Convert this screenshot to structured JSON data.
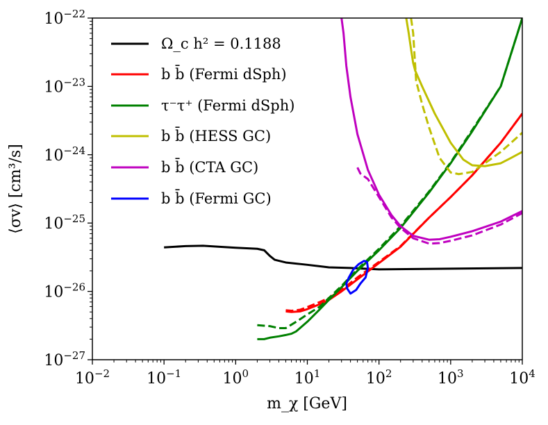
{
  "chart_data": {
    "type": "line",
    "xscale": "log",
    "yscale": "log",
    "xlim": [
      0.01,
      10000
    ],
    "ylim": [
      1e-27,
      1e-22
    ],
    "xlabel": "m_χ [GeV]",
    "ylabel": "⟨σv⟩ [cm³/s]",
    "xtick_labels": [
      {
        "base": "10",
        "exp": "−2",
        "value": 0.01
      },
      {
        "base": "10",
        "exp": "−1",
        "value": 0.1
      },
      {
        "base": "10",
        "exp": "0",
        "value": 1
      },
      {
        "base": "10",
        "exp": "1",
        "value": 10
      },
      {
        "base": "10",
        "exp": "2",
        "value": 100
      },
      {
        "base": "10",
        "exp": "3",
        "value": 1000
      },
      {
        "base": "10",
        "exp": "4",
        "value": 10000
      }
    ],
    "ytick_labels": [
      {
        "base": "10",
        "exp": "−27",
        "value": 1e-27
      },
      {
        "base": "10",
        "exp": "−26",
        "value": 1e-26
      },
      {
        "base": "10",
        "exp": "−25",
        "value": 1e-25
      },
      {
        "base": "10",
        "exp": "−24",
        "value": 1e-24
      },
      {
        "base": "10",
        "exp": "−23",
        "value": 1e-23
      },
      {
        "base": "10",
        "exp": "−22",
        "value": 1e-22
      }
    ],
    "legend_position": "top-left",
    "legend": [
      {
        "label": "Ω_c h² = 0.1188",
        "color": "#000000"
      },
      {
        "label": "b b̄ (Fermi dSph)",
        "color": "#ff0000"
      },
      {
        "label": "τ⁻τ⁺ (Fermi dSph)",
        "color": "#008000"
      },
      {
        "label": "b b̄ (HESS GC)",
        "color": "#bfbf00"
      },
      {
        "label": "b b̄ (CTA GC)",
        "color": "#bf00bf"
      },
      {
        "label": "b b̄ (Fermi GC)",
        "color": "#0000ff"
      }
    ],
    "series": [
      {
        "name": "Ω_c h² = 0.1188",
        "color": "#000000",
        "dash": false,
        "x": [
          0.1,
          0.2,
          0.35,
          0.6,
          1.0,
          2.0,
          2.5,
          3.0,
          3.5,
          5,
          10,
          20,
          40,
          100,
          1000,
          10000
        ],
        "y": [
          4.4e-26,
          4.6e-26,
          4.65e-26,
          4.5e-26,
          4.35e-26,
          4.2e-26,
          4e-26,
          3.3e-26,
          2.9e-26,
          2.65e-26,
          2.45e-26,
          2.25e-26,
          2.2e-26,
          2.1e-26,
          2.15e-26,
          2.2e-26
        ]
      },
      {
        "name": "b b̄ (Fermi dSph)",
        "color": "#ff0000",
        "dash": false,
        "x": [
          5,
          6,
          8,
          10,
          15,
          20,
          30,
          50,
          100,
          200,
          500,
          1000,
          2000,
          5000,
          10000
        ],
        "y": [
          5.1e-27,
          5e-27,
          5.1e-27,
          5.5e-27,
          6.5e-27,
          7.5e-27,
          1e-26,
          1.5e-26,
          2.6e-26,
          4.5e-26,
          1.2e-25,
          2.4e-25,
          5e-25,
          1.5e-24,
          4e-24
        ]
      },
      {
        "name": "b b̄ (Fermi dSph) dashed",
        "color": "#ff0000",
        "dash": true,
        "x": [
          5,
          6,
          8,
          10,
          15,
          20,
          30,
          50,
          100,
          200,
          500,
          1000,
          2000,
          5000,
          10000
        ],
        "y": [
          5.3e-27,
          5.2e-27,
          5.4e-27,
          5.9e-27,
          7e-27,
          8e-27,
          1.05e-26,
          1.6e-26,
          2.7e-26,
          4.6e-26,
          1.2e-25,
          2.4e-25,
          5e-25,
          1.5e-24,
          4e-24
        ]
      },
      {
        "name": "τ⁻τ⁺ (Fermi dSph)",
        "color": "#008000",
        "dash": false,
        "x": [
          2,
          2.5,
          3,
          4,
          5,
          6,
          7,
          10,
          15,
          20,
          30,
          50,
          100,
          200,
          500,
          1000,
          2000,
          5000,
          10000
        ],
        "y": [
          2e-27,
          2e-27,
          2.1e-27,
          2.2e-27,
          2.3e-27,
          2.4e-27,
          2.6e-27,
          3.6e-27,
          5.5e-27,
          7.5e-27,
          1.15e-26,
          2e-26,
          4e-26,
          8.5e-26,
          2.8e-25,
          7.5e-25,
          2.2e-24,
          1e-23,
          1e-22
        ]
      },
      {
        "name": "τ⁻τ⁺ (Fermi dSph) dashed",
        "color": "#008000",
        "dash": true,
        "x": [
          2,
          3,
          4,
          5,
          7,
          10,
          15,
          20,
          30,
          50,
          100,
          200,
          500,
          1000,
          2000,
          5000,
          10000
        ],
        "y": [
          3.2e-27,
          3.1e-27,
          2.9e-27,
          2.9e-27,
          3.6e-27,
          4.6e-27,
          6e-27,
          8e-27,
          1.2e-26,
          2.1e-26,
          4.2e-26,
          9e-26,
          2.9e-25,
          7.7e-25,
          2.3e-24,
          1e-23,
          1e-22
        ]
      },
      {
        "name": "b b̄ (HESS GC)",
        "color": "#bfbf00",
        "dash": false,
        "x": [
          240,
          260,
          280,
          300,
          320,
          400,
          600,
          1000,
          1500,
          2000,
          3000,
          5000,
          7000,
          10000
        ],
        "y": [
          1e-22,
          6e-23,
          3.5e-23,
          2.2e-23,
          1.7e-23,
          1e-23,
          4e-24,
          1.5e-24,
          8.5e-25,
          7e-25,
          6.8e-25,
          7.5e-25,
          9e-25,
          1.1e-24
        ]
      },
      {
        "name": "b b̄ (HESS GC) dashed",
        "color": "#bfbf00",
        "dash": true,
        "x": [
          280,
          300,
          330,
          400,
          500,
          700,
          1000,
          1300,
          2000,
          3000,
          5000,
          7000,
          10000
        ],
        "y": [
          1e-22,
          6e-23,
          1.2e-23,
          5.5e-24,
          2.5e-24,
          9e-25,
          5.5e-25,
          5.2e-25,
          5.6e-25,
          7.5e-25,
          1.1e-24,
          1.5e-24,
          2.1e-24
        ]
      },
      {
        "name": "b b̄ (CTA GC)",
        "color": "#bf00bf",
        "dash": false,
        "x": [
          30,
          32,
          35,
          40,
          50,
          70,
          100,
          150,
          200,
          300,
          500,
          700,
          1000,
          2000,
          5000,
          10000
        ],
        "y": [
          1e-22,
          6e-23,
          2e-23,
          7e-24,
          2e-24,
          6e-25,
          2.6e-25,
          1.3e-25,
          9e-26,
          6.5e-26,
          5.7e-26,
          5.8e-26,
          6.3e-26,
          7.6e-26,
          1.05e-25,
          1.5e-25
        ]
      },
      {
        "name": "b b̄ (CTA GC) dashed",
        "color": "#bf00bf",
        "dash": true,
        "x": [
          50,
          55,
          70,
          100,
          150,
          200,
          300,
          500,
          700,
          1000,
          2000,
          5000,
          10000
        ],
        "y": [
          6.5e-25,
          5.3e-25,
          4.4e-25,
          2.4e-25,
          1.2e-25,
          8.5e-26,
          6e-26,
          5e-26,
          5.1e-26,
          5.5e-26,
          6.6e-26,
          9.5e-26,
          1.4e-25
        ]
      },
      {
        "name": "b b̄ (Fermi GC)",
        "color": "#0000ff",
        "dash": false,
        "closed": true,
        "x": [
          35,
          36,
          40,
          48,
          55,
          65,
          70,
          68,
          62,
          52,
          44,
          38,
          35
        ],
        "y": [
          1.3e-26,
          1.1e-26,
          9.3e-27,
          1.05e-26,
          1.3e-26,
          1.6e-26,
          2.2e-26,
          2.7e-26,
          2.8e-26,
          2.5e-26,
          2.1e-26,
          1.6e-26,
          1.3e-26
        ]
      }
    ]
  }
}
